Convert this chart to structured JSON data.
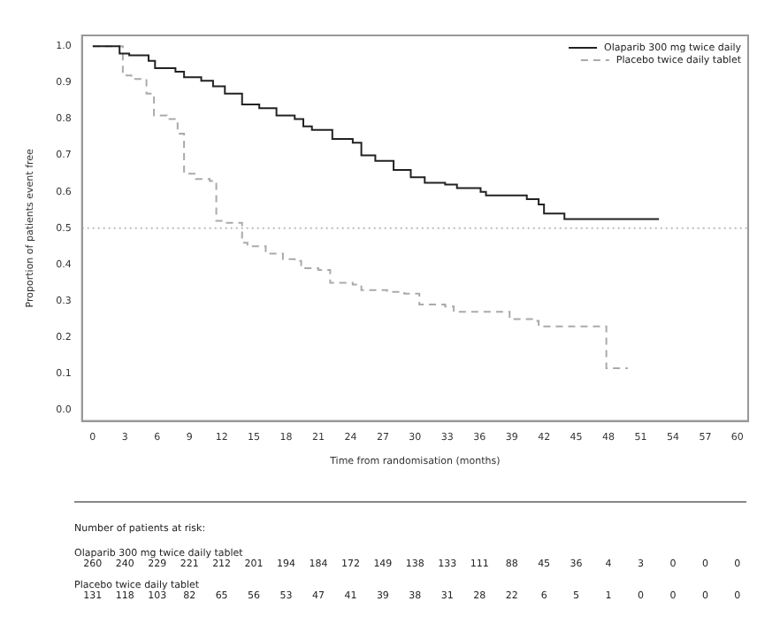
{
  "chart_data": {
    "type": "step",
    "xlabel": "Time from randomisation (months)",
    "ylabel": "Proportion of patients event free",
    "xlim": [
      -1,
      61
    ],
    "xticks": [
      0,
      3,
      6,
      9,
      12,
      15,
      18,
      21,
      24,
      27,
      30,
      33,
      36,
      39,
      42,
      45,
      48,
      51,
      54,
      57,
      60
    ],
    "ylim": [
      -0.03,
      1.03
    ],
    "yticks": [
      {
        "value": 0,
        "label": "0.0"
      },
      0.1,
      0.2,
      0.3,
      0.4,
      0.5,
      0.6,
      0.7,
      0.8,
      0.9,
      {
        "value": 1,
        "label": "1.0"
      }
    ],
    "grid": false,
    "legend": "top right",
    "marker": "none",
    "series": [
      {
        "name": "Olaparib 300 mg twice daily",
        "color": "#222222",
        "line_style": "solid",
        "x": [
          0,
          2.3,
          2.5,
          3.4,
          5.2,
          5.8,
          7.7,
          8.5,
          10.1,
          11.2,
          12.3,
          13.9,
          15.5,
          17.1,
          18.8,
          19.6,
          20.4,
          22.3,
          24.2,
          25,
          26.3,
          28,
          29.6,
          30.9,
          32.8,
          33.9,
          36.1,
          36.6,
          40.4,
          41.5,
          42,
          43.9,
          52.7
        ],
        "values": [
          1.0,
          1.0,
          0.98,
          0.975,
          0.96,
          0.94,
          0.93,
          0.915,
          0.905,
          0.89,
          0.87,
          0.84,
          0.83,
          0.81,
          0.8,
          0.78,
          0.77,
          0.745,
          0.735,
          0.7,
          0.685,
          0.66,
          0.64,
          0.625,
          0.62,
          0.61,
          0.6,
          0.59,
          0.58,
          0.565,
          0.54,
          0.525,
          0.525
        ]
      },
      {
        "name": "Placebo twice daily tablet",
        "color": "#aaaaaa",
        "line_style": "dashed",
        "x": [
          0,
          2.4,
          2.8,
          3.6,
          5,
          5.7,
          6.9,
          7.9,
          8.5,
          9.6,
          10.9,
          11.5,
          12,
          13.9,
          14.4,
          16.1,
          17.7,
          18.8,
          19.4,
          21,
          22.1,
          24.2,
          25,
          27.4,
          29,
          30.4,
          32.8,
          33.6,
          38.8,
          41.2,
          41.5,
          47.8,
          49.8
        ],
        "values": [
          1.0,
          1.0,
          0.92,
          0.91,
          0.87,
          0.81,
          0.8,
          0.76,
          0.65,
          0.635,
          0.63,
          0.52,
          0.515,
          0.46,
          0.45,
          0.43,
          0.415,
          0.41,
          0.39,
          0.385,
          0.35,
          0.345,
          0.33,
          0.325,
          0.32,
          0.29,
          0.285,
          0.27,
          0.25,
          0.245,
          0.23,
          0.115,
          0.115
        ]
      }
    ],
    "ref_lines": [
      {
        "axis": "y",
        "value": 0.5,
        "color": "#bbbbbb",
        "line_style": "dotted"
      }
    ],
    "annotations": [
      "Number of patients at risk:",
      "Olaparib 300 mg twice daily tablet",
      "260 240 229 221 212 201 194 184 172 149 138 133 111 88 45 36 4 3 0 0 0",
      "Placebo twice daily tablet",
      "131 118 103 82 65 56 53 47 41 39 38 31 28 22 6 5 1 0 0 0 0"
    ]
  }
}
